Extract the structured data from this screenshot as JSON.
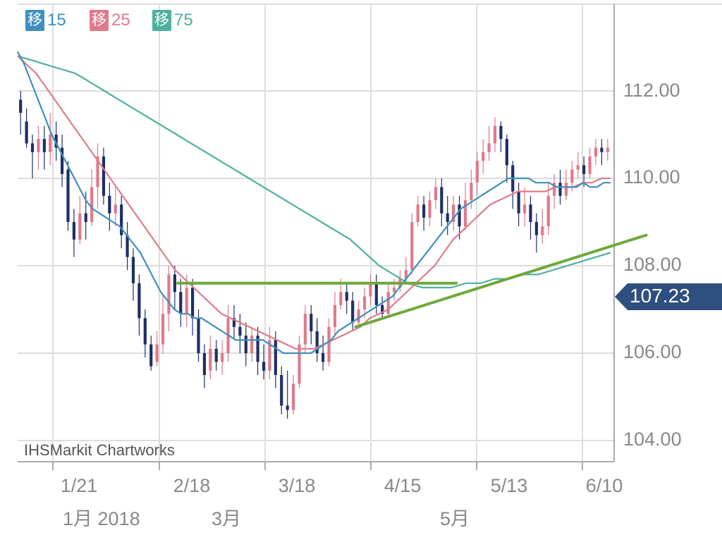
{
  "chart_data": {
    "type": "candlestick",
    "legend": [
      {
        "badge": "移",
        "value": "15",
        "color": "#3f8fc0"
      },
      {
        "badge": "移",
        "value": "25",
        "color": "#e07a8a"
      },
      {
        "badge": "移",
        "value": "75",
        "color": "#4fb0a0"
      }
    ],
    "y_ticks": [
      "112.00",
      "110.00",
      "108.00",
      "106.00",
      "104.00"
    ],
    "x_ticks": [
      "1/21",
      "2/18",
      "3/18",
      "4/15",
      "5/13",
      "6/10"
    ],
    "month_labels": [
      "1月 2018",
      "3月",
      "5月"
    ],
    "ylim": [
      103.5,
      113.5
    ],
    "last_price": "107.23",
    "watermark": "IHSMarkit Chartworks",
    "colors": {
      "up": "#e07a8a",
      "down": "#1f2f66",
      "ma15": "#3f8fc0",
      "ma25": "#e07a8a",
      "ma75": "#4fb0a0",
      "trend": "#6fa83a",
      "price_tag": "#2f4f80"
    },
    "candles": [
      [
        111.8,
        111.5,
        112.0,
        111.0
      ],
      [
        111.3,
        110.8,
        111.6,
        110.7
      ],
      [
        110.8,
        110.6,
        111.0,
        110.0
      ],
      [
        110.6,
        110.9,
        111.2,
        110.2
      ],
      [
        110.9,
        110.6,
        111.2,
        110.2
      ],
      [
        110.6,
        111.0,
        111.5,
        110.3
      ],
      [
        111.0,
        110.7,
        111.3,
        110.4
      ],
      [
        110.7,
        110.1,
        111.0,
        109.8
      ],
      [
        110.2,
        109.0,
        110.4,
        108.8
      ],
      [
        109.0,
        108.6,
        109.3,
        108.2
      ],
      [
        108.6,
        109.2,
        109.6,
        108.5
      ],
      [
        109.2,
        109.0,
        109.7,
        108.6
      ],
      [
        109.0,
        109.8,
        110.2,
        108.9
      ],
      [
        109.8,
        110.5,
        110.8,
        109.3
      ],
      [
        110.5,
        109.6,
        110.7,
        109.4
      ],
      [
        109.6,
        109.2,
        109.9,
        108.8
      ],
      [
        109.2,
        109.4,
        109.8,
        108.9
      ],
      [
        109.4,
        108.7,
        109.6,
        108.4
      ],
      [
        108.7,
        108.2,
        109.0,
        107.9
      ],
      [
        108.2,
        107.6,
        108.4,
        107.2
      ],
      [
        107.6,
        106.8,
        107.8,
        106.4
      ],
      [
        106.8,
        106.2,
        107.0,
        105.9
      ],
      [
        106.2,
        105.7,
        106.4,
        105.6
      ],
      [
        105.8,
        106.2,
        106.5,
        105.7
      ],
      [
        106.2,
        106.9,
        107.3,
        106.0
      ],
      [
        106.9,
        107.8,
        108.0,
        106.5
      ],
      [
        107.8,
        107.4,
        108.0,
        107.0
      ],
      [
        107.4,
        106.9,
        107.7,
        106.6
      ],
      [
        106.9,
        107.5,
        107.8,
        106.6
      ],
      [
        107.5,
        106.8,
        107.7,
        106.4
      ],
      [
        106.8,
        106.0,
        107.0,
        105.8
      ],
      [
        106.0,
        105.5,
        106.2,
        105.2
      ],
      [
        105.6,
        106.1,
        106.4,
        105.4
      ],
      [
        106.1,
        105.8,
        106.3,
        105.6
      ],
      [
        105.8,
        106.0,
        106.3,
        105.5
      ],
      [
        106.0,
        106.8,
        107.1,
        105.8
      ],
      [
        106.8,
        106.6,
        107.1,
        106.3
      ],
      [
        106.6,
        106.4,
        106.9,
        106.0
      ],
      [
        106.4,
        106.0,
        106.7,
        105.7
      ],
      [
        106.0,
        106.4,
        106.6,
        105.8
      ],
      [
        106.4,
        105.8,
        106.6,
        105.5
      ],
      [
        105.8,
        105.6,
        106.2,
        105.4
      ],
      [
        105.6,
        106.3,
        106.6,
        105.4
      ],
      [
        106.3,
        105.5,
        106.5,
        105.2
      ],
      [
        105.5,
        104.8,
        105.7,
        104.6
      ],
      [
        104.8,
        104.7,
        105.6,
        104.5
      ],
      [
        104.7,
        105.3,
        105.5,
        104.6
      ],
      [
        105.3,
        106.2,
        106.4,
        105.2
      ],
      [
        106.2,
        106.9,
        107.1,
        106.0
      ],
      [
        106.9,
        106.5,
        107.1,
        106.2
      ],
      [
        106.5,
        106.0,
        106.8,
        105.8
      ],
      [
        106.0,
        105.8,
        106.4,
        105.6
      ],
      [
        105.8,
        106.6,
        106.8,
        105.7
      ],
      [
        106.6,
        107.1,
        107.4,
        106.4
      ],
      [
        107.1,
        107.4,
        107.7,
        107.0
      ],
      [
        107.4,
        107.2,
        107.6,
        106.9
      ],
      [
        107.2,
        106.7,
        107.4,
        106.5
      ],
      [
        106.7,
        107.0,
        107.2,
        106.6
      ],
      [
        107.0,
        107.3,
        107.5,
        106.8
      ],
      [
        107.3,
        107.6,
        107.8,
        107.1
      ],
      [
        107.6,
        107.1,
        107.8,
        106.9
      ],
      [
        107.1,
        106.9,
        107.3,
        106.8
      ],
      [
        106.9,
        107.4,
        107.6,
        106.8
      ],
      [
        107.4,
        107.5,
        107.7,
        107.2
      ],
      [
        107.5,
        107.7,
        107.9,
        107.4
      ],
      [
        107.7,
        107.9,
        108.2,
        107.6
      ],
      [
        107.9,
        109.0,
        109.2,
        107.8
      ],
      [
        109.0,
        109.4,
        109.6,
        108.9
      ],
      [
        109.4,
        109.1,
        109.6,
        108.8
      ],
      [
        109.1,
        109.5,
        109.7,
        108.9
      ],
      [
        109.5,
        109.8,
        110.0,
        109.3
      ],
      [
        109.8,
        109.2,
        110.0,
        108.9
      ],
      [
        109.2,
        109.0,
        109.6,
        108.7
      ],
      [
        109.0,
        109.4,
        109.6,
        108.8
      ],
      [
        109.4,
        108.9,
        109.6,
        108.6
      ],
      [
        108.9,
        109.5,
        109.9,
        108.8
      ],
      [
        109.5,
        109.9,
        110.2,
        109.3
      ],
      [
        109.9,
        110.4,
        110.6,
        109.6
      ],
      [
        110.4,
        110.6,
        110.9,
        110.1
      ],
      [
        110.6,
        110.8,
        111.2,
        110.4
      ],
      [
        110.8,
        111.2,
        111.4,
        110.6
      ],
      [
        111.2,
        110.9,
        111.3,
        110.6
      ],
      [
        110.9,
        110.3,
        111.0,
        109.9
      ],
      [
        110.3,
        109.7,
        110.4,
        109.3
      ],
      [
        109.7,
        109.2,
        109.9,
        108.9
      ],
      [
        109.2,
        109.4,
        109.8,
        108.9
      ],
      [
        109.4,
        109.0,
        109.6,
        108.6
      ],
      [
        109.0,
        108.7,
        109.2,
        108.3
      ],
      [
        108.7,
        108.9,
        109.3,
        108.5
      ],
      [
        108.9,
        109.6,
        109.9,
        108.7
      ],
      [
        109.6,
        109.9,
        110.1,
        109.3
      ],
      [
        109.9,
        109.6,
        110.2,
        109.4
      ],
      [
        109.6,
        109.9,
        110.2,
        109.5
      ],
      [
        109.9,
        110.2,
        110.4,
        109.7
      ],
      [
        110.2,
        110.3,
        110.6,
        110.0
      ],
      [
        110.3,
        110.1,
        110.5,
        109.8
      ],
      [
        110.1,
        110.5,
        110.7,
        110.0
      ],
      [
        110.5,
        110.7,
        110.9,
        110.3
      ],
      [
        110.7,
        110.6,
        110.9,
        110.3
      ],
      [
        110.6,
        110.7,
        110.9,
        110.4
      ]
    ],
    "ma15": [
      112.9,
      112.6,
      112.2,
      111.8,
      111.4,
      111.0,
      110.7,
      110.4,
      110.1,
      109.8,
      109.5,
      109.3,
      109.2,
      109.1,
      109.0,
      108.9,
      108.7,
      108.5,
      108.3,
      108.0,
      107.7,
      107.4,
      107.2,
      107.0,
      106.9,
      106.9,
      106.8,
      106.8,
      106.7,
      106.6,
      106.5,
      106.4,
      106.3,
      106.3,
      106.3,
      106.3,
      106.3,
      106.2,
      106.1,
      106.0,
      106.0,
      106.0,
      106.0,
      106.0,
      106.1,
      106.2,
      106.3,
      106.5,
      106.6,
      106.7,
      106.8,
      106.9,
      107.0,
      107.1,
      107.2,
      107.3,
      107.5,
      107.7,
      107.9,
      108.1,
      108.3,
      108.5,
      108.7,
      108.9,
      109.1,
      109.3,
      109.4,
      109.5,
      109.6,
      109.7,
      109.8,
      109.9,
      110.0,
      110.0,
      110.0,
      110.0,
      109.9,
      109.9,
      109.9,
      109.8,
      109.8,
      109.8,
      109.8,
      109.9,
      109.8,
      109.8,
      109.9,
      109.9
    ],
    "ma25": [
      112.8,
      112.6,
      112.4,
      112.1,
      111.8,
      111.5,
      111.2,
      110.9,
      110.6,
      110.3,
      110.0,
      109.7,
      109.4,
      109.1,
      108.8,
      108.5,
      108.2,
      107.9,
      107.7,
      107.5,
      107.3,
      107.1,
      106.9,
      106.8,
      106.7,
      106.6,
      106.5,
      106.4,
      106.3,
      106.2,
      106.1,
      106.1,
      106.1,
      106.2,
      106.3,
      106.4,
      106.5,
      106.6,
      106.8,
      106.9,
      107.0,
      107.2,
      107.4,
      107.6,
      107.8,
      108.0,
      108.3,
      108.6,
      108.8,
      109.0,
      109.2,
      109.4,
      109.5,
      109.6,
      109.7,
      109.7,
      109.7,
      109.7,
      109.8,
      109.8,
      109.8,
      109.9,
      109.9,
      110.0,
      110.0
    ],
    "ma75": [
      112.8,
      112.7,
      112.6,
      112.5,
      112.4,
      112.2,
      112.0,
      111.8,
      111.6,
      111.4,
      111.2,
      111.0,
      110.8,
      110.6,
      110.4,
      110.2,
      110.0,
      109.8,
      109.6,
      109.4,
      109.2,
      109.0,
      108.8,
      108.6,
      108.3,
      108.0,
      107.8,
      107.6,
      107.5,
      107.5,
      107.5,
      107.6,
      107.6,
      107.7,
      107.7,
      107.8,
      107.8,
      107.9,
      108.0,
      108.1,
      108.2,
      108.3
    ],
    "trend_lines": [
      {
        "x": [
          0.27,
          0.74
        ],
        "y": [
          107.6,
          107.6
        ]
      },
      {
        "x": [
          0.57,
          1.06
        ],
        "y": [
          106.6,
          108.7
        ]
      }
    ]
  }
}
